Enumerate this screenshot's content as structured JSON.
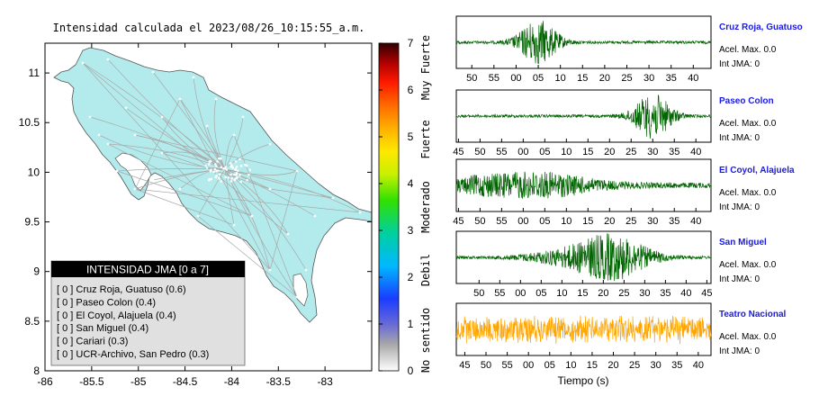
{
  "map": {
    "title": "Intensidad calculada el 2023/08/26_10:15:55_a.m.",
    "x_ticks": [
      "-86",
      "-85.5",
      "-85",
      "-84.5",
      "-84",
      "-83.5",
      "-83"
    ],
    "y_ticks": [
      "11",
      "10.5",
      "10",
      "9.5",
      "9",
      "8.5",
      "8"
    ],
    "xlim": [
      -86,
      -82.5
    ],
    "ylim": [
      8,
      11.3
    ],
    "colors": {
      "land": "#b3ebec",
      "roads": "#a8a8a8",
      "places": "#ffffff",
      "frame": "#000000"
    },
    "legend": {
      "title": "INTENSIDAD JMA [0 a 7]",
      "items": [
        "[ 0 ]  Cruz Roja, Guatuso (0.6)",
        "[ 0 ]  Paseo Colon (0.4)",
        "[ 0 ]  El Coyol, Alajuela (0.4)",
        "[ 0 ]  San Miguel (0.4)",
        "[ 0 ]  Cariari (0.3)",
        "[ 0 ]  UCR-Archivo, San Pedro (0.3)"
      ]
    }
  },
  "colorbar": {
    "ticks": [
      "7",
      "6",
      "5",
      "4",
      "3",
      "2",
      "1",
      "0"
    ],
    "labels": [
      "Muy Fuerte",
      "Fuerte",
      "Moderado",
      "Debil",
      "No sentido"
    ],
    "range": [
      0,
      7
    ]
  },
  "chart_data": {
    "type": "line",
    "xlabel": "Tiempo (s)",
    "series": [
      {
        "name": "Cruz Roja, Guatuso",
        "acel_label": "Acel. Max. 0.0",
        "jma_label": "Int JMA: 0",
        "color": "#006400",
        "tick_labels": [
          "50",
          "55",
          "00",
          "05",
          "10",
          "15",
          "20",
          "25",
          "30",
          "35",
          "40"
        ],
        "first_tick": 50,
        "tick_step": 5,
        "window_start": 46.5,
        "window_end": 44,
        "burst_center": 5
      },
      {
        "name": "Paseo Colon",
        "acel_label": "Acel. Max. 0.0",
        "jma_label": "Int JMA: 0",
        "color": "#006400",
        "tick_labels": [
          "45",
          "50",
          "55",
          "00",
          "05",
          "10",
          "15",
          "20",
          "25",
          "30",
          "35",
          "40"
        ],
        "first_tick": 45,
        "tick_step": 5,
        "window_start": 44.5,
        "window_end": 43.5,
        "burst_center": 30
      },
      {
        "name": "El Coyol, Alajuela",
        "acel_label": "Acel. Max. 0.0",
        "jma_label": "Int JMA: 0",
        "color": "#006400",
        "tick_labels": [
          "45",
          "50",
          "55",
          "00",
          "05",
          "10",
          "15",
          "20",
          "25",
          "30",
          "35",
          "40"
        ],
        "first_tick": 45,
        "tick_step": 5,
        "window_start": 44.5,
        "window_end": 43.5,
        "burst_center": 3
      },
      {
        "name": "San Miguel",
        "acel_label": "Acel. Max. 0.0",
        "jma_label": "Int JMA: 0",
        "color": "#006400",
        "tick_labels": [
          "50",
          "55",
          "00",
          "05",
          "10",
          "15",
          "20",
          "25",
          "30",
          "35",
          "40",
          "45"
        ],
        "first_tick": 50,
        "tick_step": 5,
        "window_start": 44.5,
        "window_end": 46,
        "burst_center": 22
      },
      {
        "name": "Teatro Nacional",
        "acel_label": "Acel. Max. 0.0",
        "jma_label": "Int JMA: 0",
        "color": "#ffa500",
        "tick_labels": [
          "45",
          "50",
          "55",
          "00",
          "05",
          "10",
          "15",
          "20",
          "25",
          "30",
          "35",
          "40"
        ],
        "first_tick": 45,
        "tick_step": 5,
        "window_start": 43,
        "window_end": 43,
        "burst_center": -1
      }
    ]
  }
}
